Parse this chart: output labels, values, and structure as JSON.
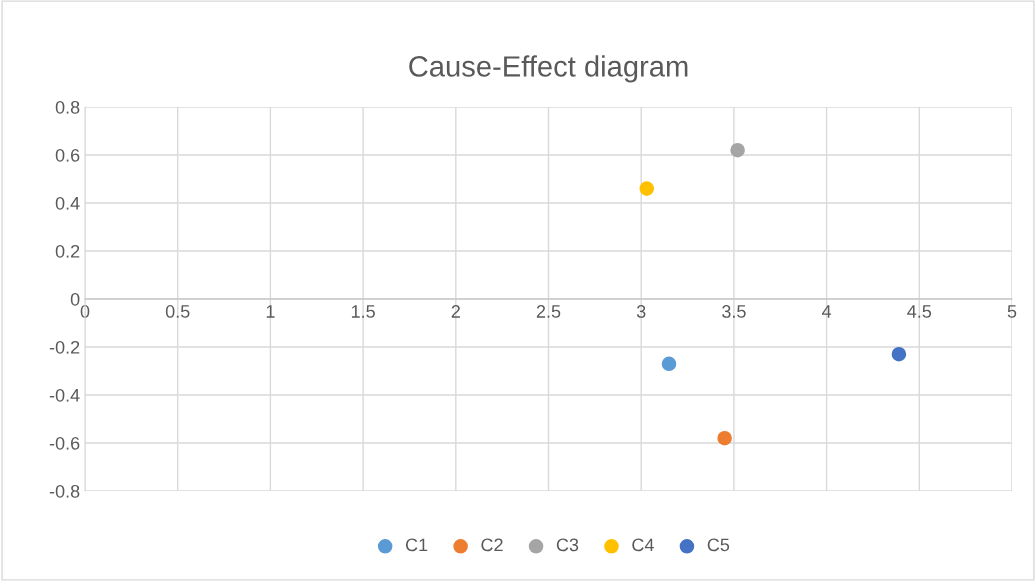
{
  "chart_data": {
    "type": "scatter",
    "title": "Cause-Effect diagram",
    "series": [
      {
        "name": "C1",
        "color": "#5b9bd5",
        "x": [
          3.15
        ],
        "values": [
          -0.27
        ]
      },
      {
        "name": "C2",
        "color": "#ed7d31",
        "x": [
          3.45
        ],
        "values": [
          -0.58
        ]
      },
      {
        "name": "C3",
        "color": "#a5a5a5",
        "x": [
          3.52
        ],
        "values": [
          0.62
        ]
      },
      {
        "name": "C4",
        "color": "#ffc000",
        "x": [
          3.03
        ],
        "values": [
          0.46
        ]
      },
      {
        "name": "C5",
        "color": "#4472c4",
        "x": [
          4.39
        ],
        "values": [
          -0.23
        ]
      }
    ],
    "xlim": [
      0,
      5
    ],
    "xticks": [
      0,
      0.5,
      1,
      1.5,
      2,
      2.5,
      3,
      3.5,
      4,
      4.5,
      5
    ],
    "ylim": [
      -0.8,
      0.8
    ],
    "yticks": [
      -0.8,
      -0.6,
      -0.4,
      -0.2,
      0,
      0.2,
      0.4,
      0.6,
      0.8
    ],
    "grid": true,
    "legend": "bottom",
    "marker": "circle"
  }
}
